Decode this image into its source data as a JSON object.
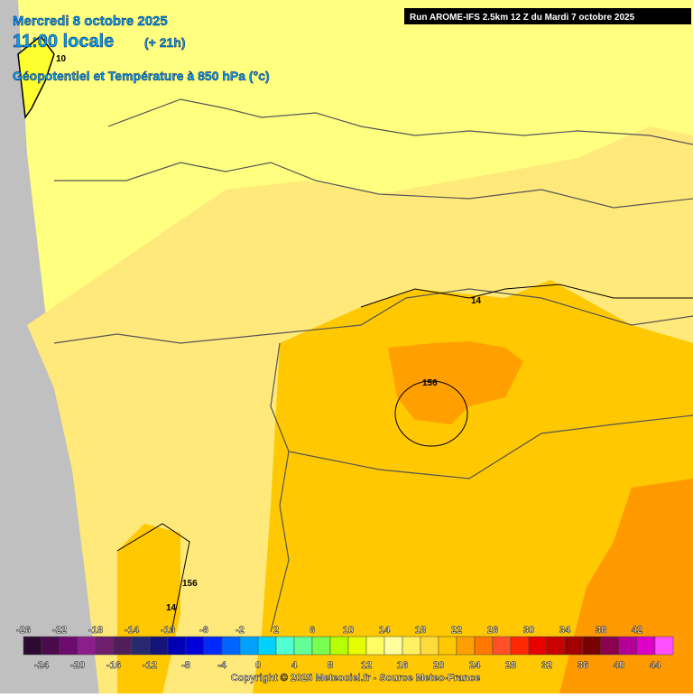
{
  "header": {
    "date": "Mercredi 8 octobre 2025",
    "time": "11:00 locale",
    "lead": "(+ 21h)",
    "field": "Géopotentiel et Température à 850 hPa (°c)",
    "run": "Run AROME-IFS 2.5km 12 Z du Mardi 7 octobre 2025"
  },
  "contour_labels": [
    "10",
    "14",
    "156",
    "156",
    "14"
  ],
  "legend": {
    "ticks_top": [
      -26,
      -22,
      -18,
      -14,
      -10,
      -6,
      -2,
      2,
      6,
      10,
      14,
      18,
      22,
      26,
      30,
      34,
      38,
      42
    ],
    "ticks_bottom": [
      -24,
      -20,
      -16,
      -12,
      -8,
      -4,
      0,
      4,
      8,
      12,
      16,
      20,
      24,
      28,
      32,
      36,
      40,
      44
    ],
    "colors": [
      "#2d0a32",
      "#4b0a4b",
      "#6e0a6e",
      "#8c1e8c",
      "#6e1e6e",
      "#501e5a",
      "#28286e",
      "#14147a",
      "#0000b4",
      "#0000dc",
      "#0028ff",
      "#0064ff",
      "#00a0ff",
      "#00d2ff",
      "#50ffd2",
      "#64ff96",
      "#78ff50",
      "#b4ff00",
      "#e6ff00",
      "#ffff64",
      "#ffffa0",
      "#fff064",
      "#ffdc3c",
      "#ffc800",
      "#ffa000",
      "#ff7800",
      "#ff5028",
      "#ff2800",
      "#e60000",
      "#c80000",
      "#a00000",
      "#780000",
      "#8c0050",
      "#b40096",
      "#dc00c8",
      "#ff50ff"
    ]
  },
  "copyright": "Copyright © 2025 Meteociel.fr - Source Meteo-France"
}
